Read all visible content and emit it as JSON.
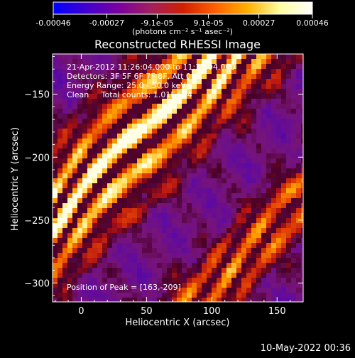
{
  "chart_data": {
    "type": "heatmap",
    "title": "Reconstructed RHESSI Image",
    "xlabel": "Heliocentric X (arcsec)",
    "ylabel": "Heliocentric Y (arcsec)",
    "xlim": [
      -22,
      170
    ],
    "ylim": [
      -315,
      -118
    ],
    "x_ticks": [
      0,
      50,
      100,
      150
    ],
    "y_ticks": [
      -150,
      -200,
      -250,
      -300
    ],
    "colorbar": {
      "min": -0.00046,
      "max": 0.00046,
      "tick_labels": [
        "-0.00046",
        "-0.00027",
        "-9.1e-05",
        "9.1e-05",
        "0.00027",
        "0.00046"
      ],
      "tick_values": [
        -0.00046,
        -0.00027,
        -9.1e-05,
        9.1e-05,
        0.00027,
        0.00046
      ],
      "units_label": "(photons cm⁻² s⁻¹ asec⁻²)",
      "colors": [
        "#0000ff",
        "#4000d0",
        "#7a00a0",
        "#a02060",
        "#d02000",
        "#ff6000",
        "#ffb000",
        "#ffffa0",
        "#ffffff"
      ]
    },
    "annotations": {
      "time_range": "21-Apr-2012 11:26:04.000 to 11:32:04.000",
      "detectors": "Detectors: 3F 5F 6F 7F 8F, Att 0",
      "energy_range": "Energy Range: 25.0 - 50.0 keV",
      "method_counts": "Clean     Total counts: 1.01E+04",
      "peak_position": "Position of Peak = [163,-209]"
    },
    "grid": false
  },
  "footer": {
    "timestamp": "10-May-2022 00:36"
  }
}
